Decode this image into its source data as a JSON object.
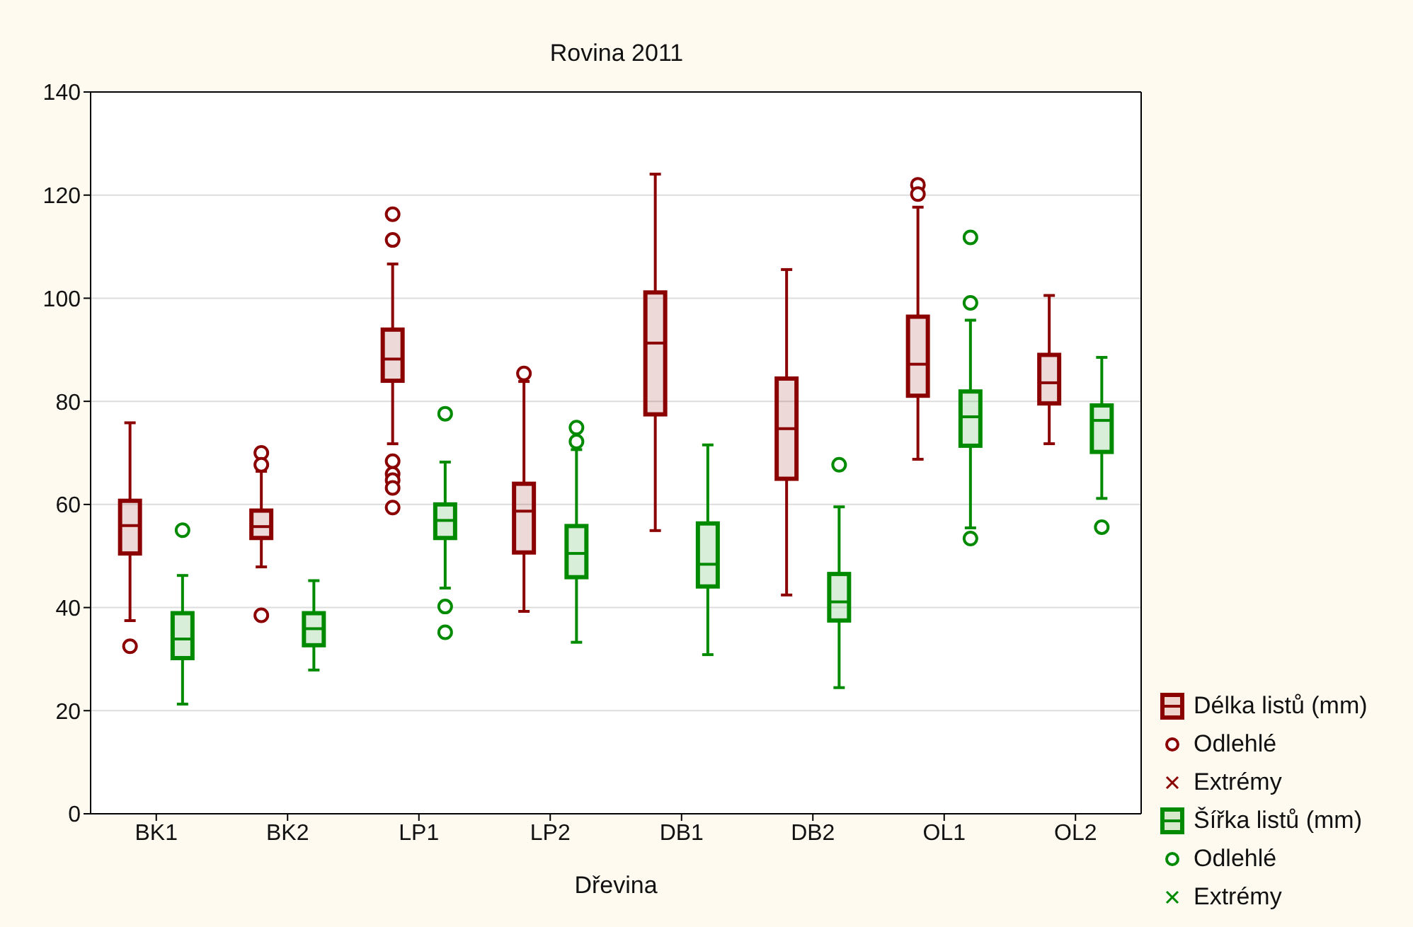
{
  "chart_data": {
    "type": "box",
    "title": "Rovina 2011",
    "xlabel": "Dřevina",
    "categories": [
      "BK1",
      "BK2",
      "LP1",
      "LP2",
      "DB1",
      "DB2",
      "OL1",
      "OL2"
    ],
    "ylim": [
      0,
      140
    ],
    "yticks": [
      0,
      20,
      40,
      60,
      80,
      100,
      120,
      140
    ],
    "grid": "y",
    "legend": "right",
    "annotations": [
      "Odlehlé",
      "Extrémy",
      "Odlehlé",
      "Extrémy"
    ],
    "series": [
      {
        "name": "Délka listů (mm)",
        "color": "#8b0000",
        "boxes": [
          {
            "low": 37.5,
            "q1": 50.5,
            "median": 55.9,
            "q3": 60.7,
            "high": 75.8,
            "outliers": [
              32.5
            ]
          },
          {
            "low": 47.9,
            "q1": 53.5,
            "median": 55.7,
            "q3": 58.8,
            "high": 66.4,
            "outliers": [
              70,
              67.7,
              38.5
            ]
          },
          {
            "low": 71.8,
            "q1": 84,
            "median": 88.2,
            "q3": 93.9,
            "high": 106.6,
            "outliers": [
              116.3,
              111.3,
              68.4,
              65.9,
              64.7,
              63.2,
              59.4
            ]
          },
          {
            "low": 39.3,
            "q1": 50.7,
            "median": 58.7,
            "q3": 64,
            "high": 83.8,
            "outliers": [
              85.4
            ]
          },
          {
            "low": 55,
            "q1": 77.5,
            "median": 91.3,
            "q3": 101.1,
            "high": 124
          },
          {
            "low": 42.5,
            "q1": 65,
            "median": 74.7,
            "q3": 84.4,
            "high": 105.5
          },
          {
            "low": 68.8,
            "q1": 81.1,
            "median": 87.2,
            "q3": 96.4,
            "high": 117.6,
            "outliers": [
              122,
              120.2
            ]
          },
          {
            "low": 71.8,
            "q1": 79.6,
            "median": 83.6,
            "q3": 89,
            "high": 100.5
          }
        ]
      },
      {
        "name": "Šířka listů (mm)",
        "color": "#008a00",
        "boxes": [
          {
            "low": 21.3,
            "q1": 30.2,
            "median": 33.9,
            "q3": 38.9,
            "high": 46.2,
            "outliers": [
              55
            ]
          },
          {
            "low": 27.9,
            "q1": 32.7,
            "median": 35.9,
            "q3": 38.9,
            "high": 45.2
          },
          {
            "low": 43.8,
            "q1": 53.5,
            "median": 56.9,
            "q3": 60,
            "high": 68.2,
            "outliers": [
              77.6,
              40.2,
              35.2
            ]
          },
          {
            "low": 33.3,
            "q1": 45.9,
            "median": 50.5,
            "q3": 55.8,
            "high": 70.6,
            "outliers": [
              74.9,
              72.2
            ]
          },
          {
            "low": 30.9,
            "q1": 44.1,
            "median": 48.4,
            "q3": 56.3,
            "high": 71.5
          },
          {
            "low": 24.5,
            "q1": 37.5,
            "median": 41.1,
            "q3": 46.5,
            "high": 59.5,
            "outliers": [
              67.7
            ]
          },
          {
            "low": 55.5,
            "q1": 71.4,
            "median": 77,
            "q3": 81.9,
            "high": 95.7,
            "outliers": [
              111.8,
              99.1,
              53.4
            ]
          },
          {
            "low": 61.2,
            "q1": 70.2,
            "median": 76.3,
            "q3": 79.2,
            "high": 88.5,
            "outliers": [
              55.6
            ]
          }
        ]
      }
    ]
  }
}
